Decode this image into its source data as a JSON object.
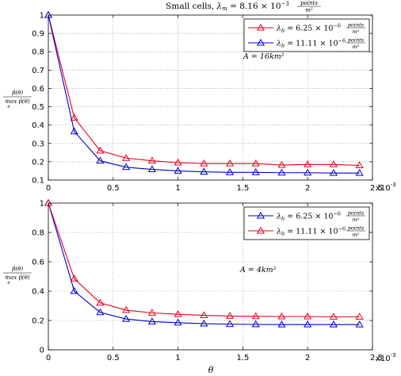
{
  "figure": {
    "title_prefix": "Small cells, ",
    "title_lambda": "λ",
    "title_lambda_sub": "m",
    "title_value": " = 8.16 × 10",
    "title_exp": "−3",
    "title_unit_num": "points",
    "title_unit_den": "m²",
    "ylabel_num": "p̂(θ)",
    "ylabel_den": "max p̂(θ)",
    "ylabel_den_sub": "θ",
    "xlabel": "θ",
    "x_multiplier": "x10",
    "x_multiplier_exp": "-3"
  },
  "chart_data": [
    {
      "type": "line",
      "annotation": "A = 16km²",
      "x": [
        0,
        0.2,
        0.4,
        0.6,
        0.8,
        1.0,
        1.2,
        1.4,
        1.6,
        1.8,
        2.0,
        2.2,
        2.4
      ],
      "xlim": [
        0,
        2.5
      ],
      "ylim": [
        0.1,
        1
      ],
      "xticks": [
        "0",
        "0.5",
        "1",
        "1.5",
        "2",
        "2.5"
      ],
      "xtick_vals": [
        0,
        0.5,
        1,
        1.5,
        2,
        2.5
      ],
      "yticks": [
        "0.1",
        "0.2",
        "0.3",
        "0.4",
        "0.5",
        "0.6",
        "0.7",
        "0.8",
        "0.9",
        "1"
      ],
      "ytick_vals": [
        0.1,
        0.2,
        0.3,
        0.4,
        0.5,
        0.6,
        0.7,
        0.8,
        0.9,
        1.0
      ],
      "grid": true,
      "legend_position": "top-right",
      "series": [
        {
          "name_sym": "λ",
          "name_sub": "b",
          "name_val": " = 6.25 × 10",
          "name_exp": "−6",
          "name_unit_num": "points",
          "name_unit_den": "m²",
          "color": "#e8001c",
          "values": [
            1.0,
            0.44,
            0.26,
            0.22,
            0.205,
            0.195,
            0.19,
            0.19,
            0.19,
            0.182,
            0.185,
            0.185,
            0.18
          ]
        },
        {
          "name_sym": "λ",
          "name_sub": "b",
          "name_val": " = 11.11 × 10",
          "name_exp": "−6",
          "name_unit_num": "points",
          "name_unit_den": "m²",
          "color": "#0000d0",
          "values": [
            1.0,
            0.365,
            0.205,
            0.17,
            0.158,
            0.15,
            0.145,
            0.142,
            0.142,
            0.14,
            0.14,
            0.138,
            0.138
          ]
        }
      ]
    },
    {
      "type": "line",
      "annotation": "A = 4km²",
      "x": [
        0,
        0.2,
        0.4,
        0.6,
        0.8,
        1.0,
        1.2,
        1.4,
        1.6,
        1.8,
        2.0,
        2.2,
        2.4
      ],
      "xlim": [
        0,
        2.5
      ],
      "ylim": [
        0,
        1
      ],
      "xticks": [
        "0",
        "0.5",
        "1",
        "1.5",
        "2",
        "2.5"
      ],
      "xtick_vals": [
        0,
        0.5,
        1,
        1.5,
        2,
        2.5
      ],
      "yticks": [
        "0",
        "0.2",
        "0.4",
        "0.6",
        "0.8",
        "1"
      ],
      "ytick_vals": [
        0,
        0.2,
        0.4,
        0.6,
        0.8,
        1.0
      ],
      "grid": true,
      "legend_position": "top-right",
      "series": [
        {
          "name_sym": "λ",
          "name_sub": "b",
          "name_val": " = 6.25 × 10",
          "name_exp": "−6",
          "name_unit_num": "points",
          "name_unit_den": "m²",
          "color": "#0000d0",
          "values": [
            1.0,
            0.4,
            0.255,
            0.21,
            0.192,
            0.185,
            0.178,
            0.175,
            0.173,
            0.172,
            0.172,
            0.172,
            0.172
          ]
        },
        {
          "name_sym": "λ",
          "name_sub": "b",
          "name_val": " = 11.11 × 10",
          "name_exp": "−6",
          "name_unit_num": "points",
          "name_unit_den": "m²",
          "color": "#e8001c",
          "values": [
            1.0,
            0.485,
            0.32,
            0.27,
            0.252,
            0.242,
            0.235,
            0.23,
            0.228,
            0.227,
            0.227,
            0.225,
            0.225
          ]
        }
      ]
    }
  ]
}
